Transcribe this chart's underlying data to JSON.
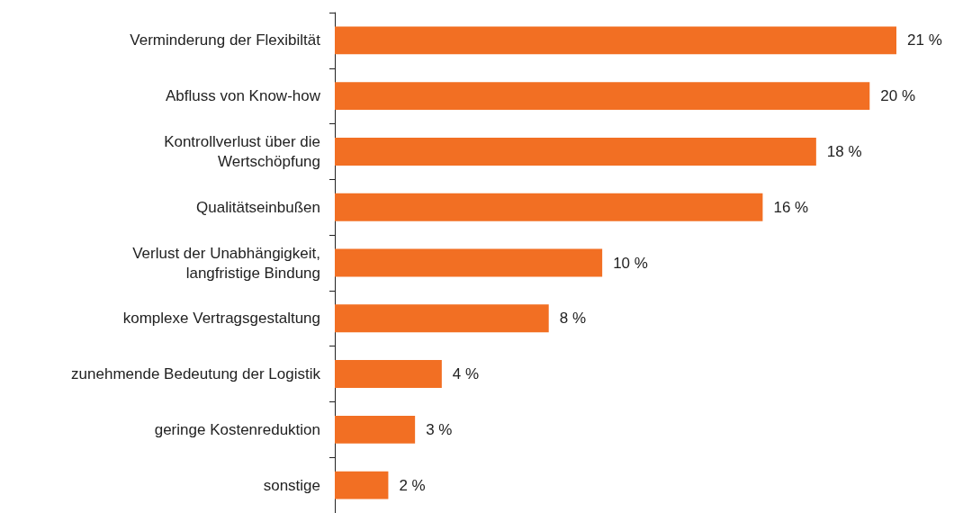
{
  "chart_data": {
    "type": "bar",
    "orientation": "horizontal",
    "categories": [
      "Verminderung der Flexibiltät",
      "Abfluss von Know-how",
      "Kontrollverlust über die\nWertschöpfung",
      "Qualitätseinbußen",
      "Verlust der Unabhängigkeit,\nlangfristige Bindung",
      "komplexe Vertragsgestaltung",
      "zunehmende Bedeutung der Logistik",
      "geringe Kostenreduktion",
      "sonstige"
    ],
    "values": [
      21,
      20,
      18,
      16,
      10,
      8,
      4,
      3,
      2
    ],
    "value_labels": [
      "21 %",
      "20 %",
      "18 %",
      "16 %",
      "10 %",
      "8 %",
      "4 %",
      "3 %",
      "2 %"
    ],
    "color": "#f26f23"
  }
}
